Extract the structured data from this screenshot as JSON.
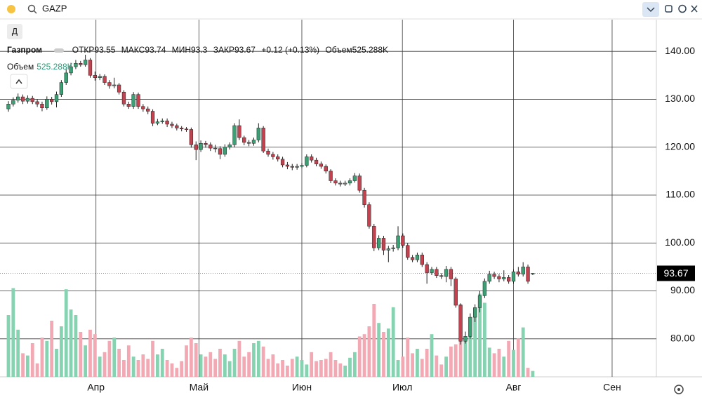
{
  "search": {
    "query": "GAZP"
  },
  "interval_button": "Д",
  "legend": {
    "name": "Газпром",
    "open_label": "ОТКР",
    "high_label": "МАКС",
    "low_label": "МИН",
    "close_label": "ЗАКР",
    "change": "+0.12 (+0.13%)",
    "volume_label": "Объем",
    "volume_value_label": "525.288K"
  },
  "chart_data": {
    "type": "candlestick",
    "x": [
      0,
      1,
      2,
      3,
      4,
      5,
      6,
      7,
      8,
      9,
      10,
      11,
      12,
      13,
      14,
      15,
      16,
      17,
      18,
      19,
      20,
      21,
      22,
      23,
      24,
      25,
      26,
      27,
      28,
      29,
      30,
      31,
      32,
      33,
      34,
      35,
      36,
      37,
      38,
      39,
      40,
      41,
      42,
      43,
      44,
      45,
      46,
      47,
      48,
      49,
      50,
      51,
      52,
      53,
      54,
      55,
      56,
      57,
      58,
      59,
      60,
      61,
      62,
      63,
      64,
      65,
      66,
      67,
      68,
      69,
      70,
      71,
      72,
      73,
      74,
      75,
      76,
      77,
      78,
      79,
      80,
      81,
      82,
      83,
      84,
      85,
      86,
      87,
      88,
      89,
      90,
      91,
      92,
      93,
      94,
      95,
      96,
      97,
      98,
      99,
      100,
      101,
      102,
      103,
      104,
      105,
      106,
      107,
      108,
      109
    ],
    "open": [
      128.0,
      129.0,
      129.8,
      130.5,
      129.6,
      130.2,
      129.5,
      129.0,
      128.2,
      130.0,
      129.5,
      131.0,
      133.5,
      135.5,
      136.8,
      137.5,
      137.2,
      138.2,
      135.0,
      134.5,
      134.8,
      133.5,
      132.8,
      133.0,
      131.5,
      129.0,
      128.5,
      131.0,
      128.5,
      128.0,
      127.5,
      125.0,
      125.3,
      125.5,
      124.8,
      124.5,
      124.0,
      123.8,
      123.7,
      120.5,
      119.5,
      120.8,
      120.5,
      119.8,
      119.7,
      118.5,
      120.0,
      120.5,
      124.5,
      122.0,
      121.0,
      120.8,
      121.5,
      124.0,
      119.2,
      118.5,
      118.0,
      117.5,
      116.3,
      116.0,
      115.8,
      116.0,
      116.2,
      118.0,
      117.3,
      116.5,
      116.0,
      115.0,
      113.0,
      112.5,
      112.3,
      112.5,
      113.0,
      114.0,
      111.0,
      108.0,
      103.5,
      99.0,
      101.0,
      98.5,
      98.8,
      99.0,
      101.5,
      99.5,
      97.0,
      96.5,
      97.5,
      95.5,
      93.8,
      94.5,
      93.2,
      93.0,
      94.5,
      92.5,
      87.0,
      79.5,
      80.5,
      84.5,
      86.5,
      89.0,
      92.0,
      93.5,
      93.0,
      92.5,
      92.8,
      92.0,
      94.0,
      93.5,
      95.0,
      93.55
    ],
    "high": [
      129.6,
      130.4,
      131.2,
      131.0,
      130.8,
      130.7,
      130.0,
      129.5,
      130.6,
      130.5,
      131.6,
      134.0,
      136.3,
      137.6,
      138.2,
      138.0,
      139.3,
      138.6,
      135.8,
      135.3,
      135.2,
      134.0,
      134.5,
      133.4,
      131.9,
      129.5,
      131.5,
      131.4,
      129.0,
      128.5,
      127.9,
      125.9,
      126.0,
      126.0,
      125.3,
      124.9,
      124.4,
      124.2,
      124.1,
      121.2,
      121.4,
      121.3,
      121.0,
      120.5,
      120.2,
      120.6,
      121.0,
      125.0,
      125.8,
      122.4,
      121.5,
      122.0,
      125.0,
      124.4,
      119.7,
      119.0,
      118.5,
      118.0,
      116.9,
      116.5,
      116.5,
      116.7,
      118.5,
      118.5,
      117.8,
      117.0,
      116.4,
      115.4,
      113.5,
      113.0,
      113.0,
      113.5,
      114.6,
      114.5,
      111.5,
      108.5,
      104.0,
      101.6,
      101.5,
      99.4,
      99.6,
      103.5,
      102.0,
      100.0,
      97.5,
      98.0,
      98.0,
      96.0,
      95.0,
      95.0,
      93.7,
      95.2,
      95.0,
      92.9,
      87.4,
      81.5,
      85.3,
      87.2,
      90.0,
      92.6,
      94.2,
      94.0,
      93.5,
      94.3,
      93.3,
      94.5,
      95.0,
      96.0,
      95.5,
      93.74
    ],
    "low": [
      127.4,
      128.5,
      129.3,
      129.0,
      129.1,
      129.0,
      128.4,
      127.5,
      127.8,
      128.9,
      128.3,
      130.5,
      133.0,
      135.0,
      136.3,
      136.8,
      136.8,
      134.5,
      133.9,
      134.0,
      133.0,
      132.2,
      132.3,
      131.0,
      128.5,
      128.0,
      128.0,
      128.0,
      127.4,
      126.9,
      124.4,
      124.6,
      124.9,
      124.2,
      124.0,
      123.5,
      123.3,
      123.2,
      119.9,
      117.3,
      119.0,
      119.9,
      119.2,
      118.9,
      117.5,
      118.0,
      119.5,
      120.0,
      121.5,
      120.4,
      120.2,
      120.3,
      121.0,
      118.8,
      118.0,
      117.4,
      117.0,
      115.8,
      115.4,
      115.2,
      115.3,
      115.6,
      115.8,
      116.8,
      116.0,
      115.5,
      114.5,
      112.5,
      112.0,
      111.8,
      111.9,
      112.0,
      112.6,
      110.5,
      107.4,
      103.0,
      98.3,
      98.5,
      97.5,
      96.0,
      98.2,
      98.5,
      99.0,
      96.5,
      96.0,
      96.0,
      95.0,
      91.5,
      93.3,
      92.7,
      92.5,
      91.8,
      91.0,
      86.5,
      78.8,
      79.0,
      80.0,
      83.5,
      85.5,
      88.5,
      91.5,
      92.5,
      91.8,
      92.0,
      91.5,
      91.5,
      93.0,
      93.0,
      91.5,
      93.3
    ],
    "close": [
      129.0,
      129.8,
      130.5,
      129.6,
      130.2,
      129.5,
      129.0,
      128.2,
      130.0,
      129.5,
      131.0,
      133.5,
      135.5,
      136.8,
      137.5,
      137.2,
      138.2,
      135.0,
      134.5,
      134.8,
      133.5,
      132.8,
      133.0,
      131.5,
      129.0,
      128.5,
      131.0,
      128.5,
      128.0,
      127.5,
      125.0,
      125.3,
      125.5,
      124.8,
      124.5,
      124.0,
      123.8,
      123.7,
      120.5,
      119.5,
      120.8,
      120.5,
      119.8,
      119.7,
      118.5,
      120.0,
      120.5,
      124.5,
      122.0,
      121.0,
      120.8,
      121.5,
      124.0,
      119.2,
      118.5,
      118.0,
      117.5,
      116.3,
      116.0,
      115.8,
      116.0,
      116.2,
      118.0,
      117.3,
      116.5,
      116.0,
      115.0,
      113.0,
      112.5,
      112.3,
      112.5,
      113.0,
      114.0,
      111.0,
      108.0,
      103.5,
      99.0,
      101.0,
      98.5,
      98.8,
      99.0,
      101.5,
      99.5,
      97.0,
      96.5,
      97.5,
      95.5,
      93.8,
      94.5,
      93.2,
      93.0,
      94.5,
      92.5,
      87.0,
      79.5,
      80.5,
      84.5,
      86.5,
      89.0,
      92.0,
      93.5,
      93.0,
      92.5,
      92.8,
      92.0,
      94.0,
      93.5,
      95.0,
      92.0,
      93.67
    ],
    "volume": [
      5500,
      7900,
      4200,
      2100,
      1900,
      3000,
      1200,
      3500,
      3200,
      5000,
      2500,
      4500,
      7800,
      6000,
      5500,
      4000,
      2800,
      4200,
      3800,
      1800,
      2200,
      3200,
      3500,
      2500,
      1500,
      2800,
      1800,
      1500,
      2000,
      1600,
      3200,
      2000,
      2500,
      1500,
      1200,
      800,
      1400,
      2800,
      3500,
      3000,
      2000,
      1800,
      2200,
      1600,
      2500,
      2000,
      1400,
      2500,
      3200,
      1800,
      2200,
      3000,
      3200,
      2700,
      1600,
      2000,
      1200,
      1500,
      1000,
      1600,
      1800,
      1500,
      1100,
      2200,
      1400,
      1500,
      1600,
      2200,
      1500,
      1200,
      1000,
      1700,
      2200,
      3600,
      3800,
      4500,
      6500,
      4800,
      4000,
      4300,
      6200,
      1500,
      1800,
      3500,
      2100,
      2500,
      1600,
      2500,
      3800,
      1900,
      1100,
      1800,
      2700,
      2900,
      6500,
      3500,
      4400,
      5300,
      7400,
      6600,
      2600,
      2100,
      2500,
      1800,
      3200,
      2400,
      3400,
      4400,
      800,
      525.288
    ],
    "up_color": "#3d9f74",
    "down_color": "#c2424f",
    "volume_up_color": "#86d3b1",
    "volume_down_color": "#f3a9b4",
    "xlim": [
      -1.75,
      134.7
    ],
    "xticks": [
      {
        "value": 18.2,
        "label": "Апр"
      },
      {
        "value": 39.6,
        "label": "Май"
      },
      {
        "value": 61,
        "label": "Июн"
      },
      {
        "value": 81.9,
        "label": "Июл"
      },
      {
        "value": 105,
        "label": "Авг"
      },
      {
        "value": 125.5,
        "label": "Сен"
      }
    ],
    "ylim": [
      72.06,
      146.62
    ],
    "yticks": [
      {
        "value": 80,
        "label": "80.00"
      },
      {
        "value": 90,
        "label": "90.00"
      },
      {
        "value": 100,
        "label": "100.00"
      },
      {
        "value": 110,
        "label": "110.00"
      },
      {
        "value": 120,
        "label": "120.00"
      },
      {
        "value": 130,
        "label": "130.00"
      },
      {
        "value": 140,
        "label": "140.00"
      }
    ],
    "volume_ylim": [
      0,
      10000
    ],
    "grid": true
  }
}
